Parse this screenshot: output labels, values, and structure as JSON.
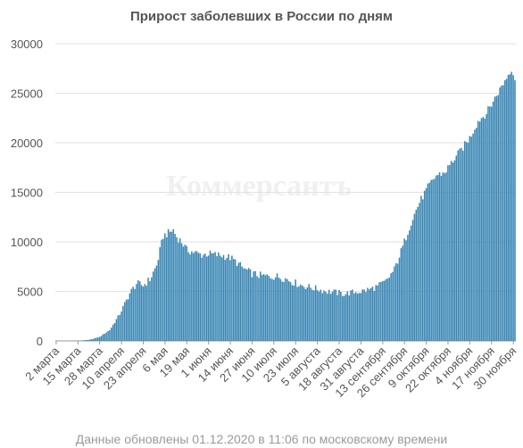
{
  "chart_data": {
    "type": "bar",
    "title": "Прирост заболевших в России по дням",
    "watermark": "Коммерсантъ",
    "footer": "Данные обновлены 01.12.2020 в 11:06 по московскому времени",
    "ylim": [
      0,
      30000
    ],
    "yticks": [
      "0",
      "5000",
      "10000",
      "15000",
      "20000",
      "25000",
      "30000"
    ],
    "bar_color": "#3a86b4",
    "xlabel": "",
    "ylabel": "",
    "x_tick_labels": [
      "2 марта",
      "15 марта",
      "28 марта",
      "10 апреля",
      "23 апреля",
      "6 мая",
      "19 мая",
      "1 июня",
      "14 июня",
      "27 июня",
      "10 июля",
      "23 июля",
      "5 августа",
      "18 августа",
      "31 августа",
      "13 сентября",
      "26 сентября",
      "9 октября",
      "22 октября",
      "4 ноября",
      "17 ноября",
      "30 ноября"
    ],
    "anchors": [
      [
        0,
        0
      ],
      [
        13,
        10
      ],
      [
        20,
        120
      ],
      [
        26,
        400
      ],
      [
        32,
        1100
      ],
      [
        38,
        2700
      ],
      [
        44,
        4800
      ],
      [
        48,
        5800
      ],
      [
        52,
        5600
      ],
      [
        56,
        6200
      ],
      [
        60,
        7600
      ],
      [
        64,
        10600
      ],
      [
        66,
        10800
      ],
      [
        68,
        11000
      ],
      [
        70,
        11200
      ],
      [
        72,
        10500
      ],
      [
        75,
        10000
      ],
      [
        78,
        9200
      ],
      [
        83,
        8900
      ],
      [
        87,
        8700
      ],
      [
        91,
        8800
      ],
      [
        95,
        8700
      ],
      [
        100,
        8600
      ],
      [
        104,
        8400
      ],
      [
        108,
        7900
      ],
      [
        112,
        7300
      ],
      [
        117,
        6800
      ],
      [
        122,
        6600
      ],
      [
        127,
        6500
      ],
      [
        132,
        6500
      ],
      [
        137,
        6300
      ],
      [
        142,
        5900
      ],
      [
        147,
        5600
      ],
      [
        152,
        5400
      ],
      [
        157,
        5200
      ],
      [
        162,
        5000
      ],
      [
        167,
        4900
      ],
      [
        172,
        4750
      ],
      [
        177,
        4900
      ],
      [
        182,
        5000
      ],
      [
        187,
        5200
      ],
      [
        192,
        5500
      ],
      [
        197,
        6000
      ],
      [
        202,
        7200
      ],
      [
        207,
        9500
      ],
      [
        212,
        12000
      ],
      [
        217,
        14000
      ],
      [
        222,
        15500
      ],
      [
        227,
        16700
      ],
      [
        232,
        17000
      ],
      [
        237,
        18200
      ],
      [
        242,
        19300
      ],
      [
        247,
        20500
      ],
      [
        252,
        22200
      ],
      [
        257,
        23000
      ],
      [
        262,
        24500
      ],
      [
        267,
        26000
      ],
      [
        272,
        27500
      ],
      [
        274,
        26500
      ]
    ],
    "noise": 400
  }
}
